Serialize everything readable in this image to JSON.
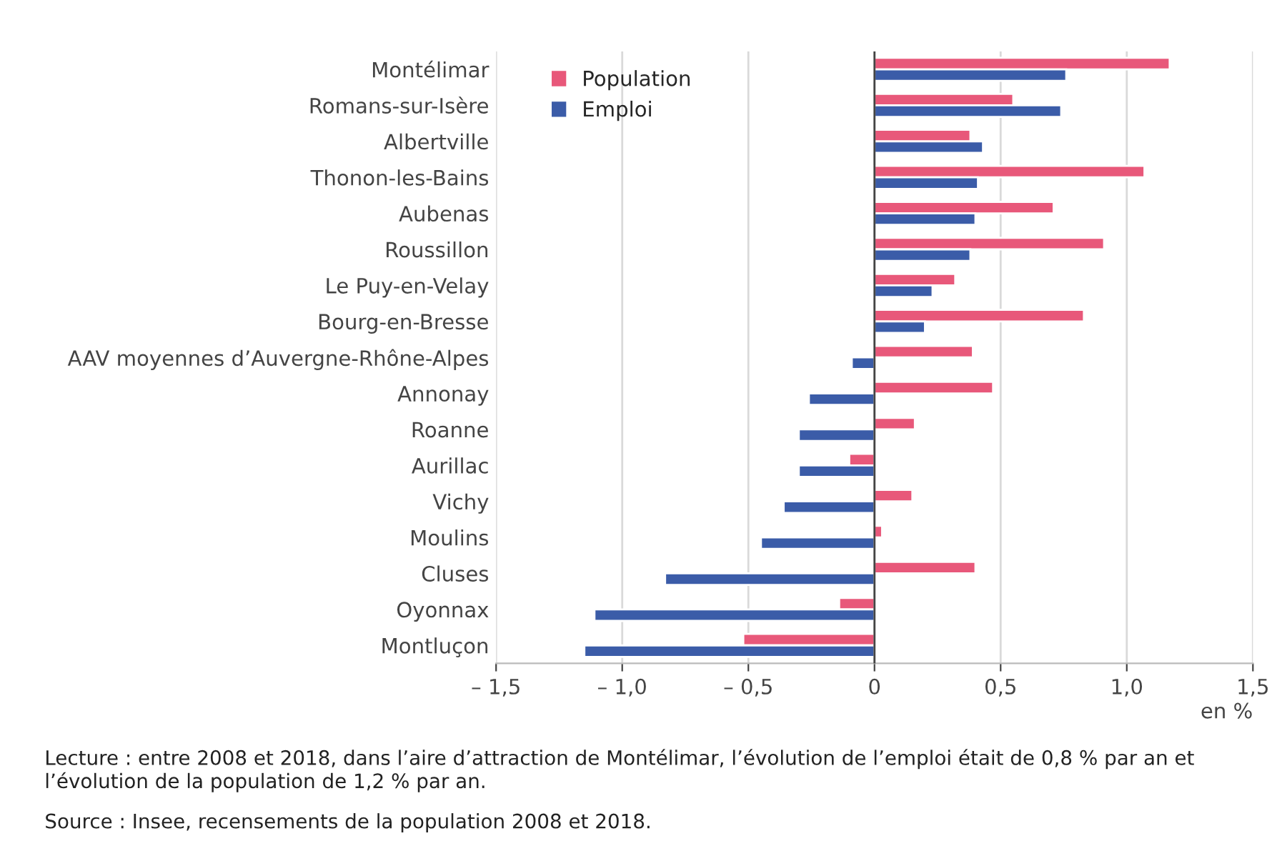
{
  "chart_data": {
    "type": "bar",
    "orientation": "horizontal",
    "categories": [
      "Montélimar",
      "Romans-sur-Isère",
      "Albertville",
      "Thonon-les-Bains",
      "Aubenas",
      "Roussillon",
      "Le Puy-en-Velay",
      "Bourg-en-Bresse",
      "AAV moyennes d’Auvergne-Rhône-Alpes",
      "Annonay",
      "Roanne",
      "Aurillac",
      "Vichy",
      "Moulins",
      "Cluses",
      "Oyonnax",
      "Montluçon"
    ],
    "series": [
      {
        "name": "Population",
        "color": "#e8587a",
        "values": [
          1.17,
          0.55,
          0.38,
          1.07,
          0.71,
          0.91,
          0.32,
          0.83,
          0.39,
          0.47,
          0.16,
          -0.1,
          0.15,
          0.03,
          0.4,
          -0.14,
          -0.52
        ]
      },
      {
        "name": "Emploi",
        "color": "#3b5ca8",
        "values": [
          0.76,
          0.74,
          0.43,
          0.41,
          0.4,
          0.38,
          0.23,
          0.2,
          -0.09,
          -0.26,
          -0.3,
          -0.3,
          -0.36,
          -0.45,
          -0.83,
          -1.11,
          -1.15
        ]
      }
    ],
    "xlim": [
      -1.5,
      1.5
    ],
    "xticks": [
      {
        "value": -1.5,
        "label": "– 1,5"
      },
      {
        "value": -1.0,
        "label": "– 1,0"
      },
      {
        "value": -0.5,
        "label": "– 0,5"
      },
      {
        "value": 0,
        "label": "0"
      },
      {
        "value": 0.5,
        "label": "0,5"
      },
      {
        "value": 1.0,
        "label": "1,0"
      },
      {
        "value": 1.5,
        "label": "1,5"
      }
    ],
    "xlabel": "en %",
    "grid": "x",
    "legend": "top left",
    "annotations": [
      "Lecture : entre 2008 et 2018, dans l’aire d’attraction de Montélimar, l’évolution de l’emploi était de 0,8 % par an et l’évolution de la population de 1,2 % par an.",
      "Source : Insee, recensements de la population 2008 et 2018."
    ]
  }
}
